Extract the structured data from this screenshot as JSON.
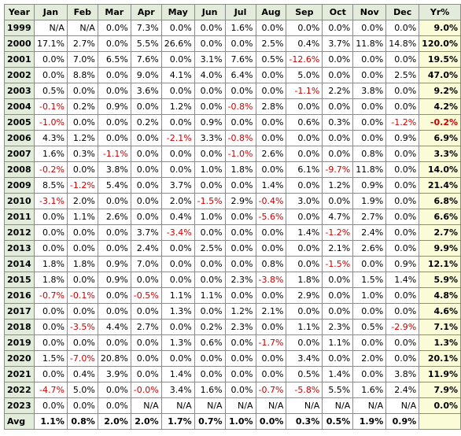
{
  "headers": [
    "Year",
    "Jan",
    "Feb",
    "Mar",
    "Apr",
    "May",
    "Jun",
    "Jul",
    "Aug",
    "Sep",
    "Oct",
    "Nov",
    "Dec",
    "Yr%"
  ],
  "rows": [
    {
      "year": "1999",
      "m": [
        "N/A",
        "N/A",
        "0.0%",
        "7.3%",
        "0.0%",
        "0.0%",
        "1.6%",
        "0.0%",
        "0.0%",
        "0.0%",
        "0.0%",
        "0.0%"
      ],
      "yr": "9.0%"
    },
    {
      "year": "2000",
      "m": [
        "17.1%",
        "2.7%",
        "0.0%",
        "5.5%",
        "26.6%",
        "0.0%",
        "0.0%",
        "2.5%",
        "0.4%",
        "3.7%",
        "11.8%",
        "14.8%"
      ],
      "yr": "120.0%"
    },
    {
      "year": "2001",
      "m": [
        "0.0%",
        "7.0%",
        "6.5%",
        "7.6%",
        "0.0%",
        "3.1%",
        "7.6%",
        "0.5%",
        "-12.6%",
        "0.0%",
        "0.0%",
        "0.0%"
      ],
      "yr": "19.5%"
    },
    {
      "year": "2002",
      "m": [
        "0.0%",
        "8.8%",
        "0.0%",
        "9.0%",
        "4.1%",
        "4.0%",
        "6.4%",
        "0.0%",
        "5.0%",
        "0.0%",
        "0.0%",
        "2.5%"
      ],
      "yr": "47.0%"
    },
    {
      "year": "2003",
      "m": [
        "0.5%",
        "0.0%",
        "0.0%",
        "3.6%",
        "0.0%",
        "0.0%",
        "0.0%",
        "0.0%",
        "-1.1%",
        "2.2%",
        "3.8%",
        "0.0%"
      ],
      "yr": "9.2%"
    },
    {
      "year": "2004",
      "m": [
        "-0.1%",
        "0.2%",
        "0.9%",
        "0.0%",
        "1.2%",
        "0.0%",
        "-0.8%",
        "2.8%",
        "0.0%",
        "0.0%",
        "0.0%",
        "0.0%"
      ],
      "yr": "4.2%"
    },
    {
      "year": "2005",
      "m": [
        "-1.0%",
        "0.0%",
        "0.0%",
        "0.2%",
        "0.0%",
        "0.9%",
        "0.0%",
        "0.0%",
        "0.6%",
        "0.3%",
        "0.0%",
        "-1.2%"
      ],
      "yr": "-0.2%"
    },
    {
      "year": "2006",
      "m": [
        "4.3%",
        "1.2%",
        "0.0%",
        "0.0%",
        "-2.1%",
        "3.3%",
        "-0.8%",
        "0.0%",
        "0.0%",
        "0.0%",
        "0.0%",
        "0.9%"
      ],
      "yr": "6.9%"
    },
    {
      "year": "2007",
      "m": [
        "1.6%",
        "0.3%",
        "-1.1%",
        "0.0%",
        "0.0%",
        "0.0%",
        "-1.0%",
        "2.6%",
        "0.0%",
        "0.0%",
        "0.8%",
        "0.0%"
      ],
      "yr": "3.3%"
    },
    {
      "year": "2008",
      "m": [
        "-0.2%",
        "0.0%",
        "3.8%",
        "0.0%",
        "0.0%",
        "1.0%",
        "1.8%",
        "0.0%",
        "6.1%",
        "-9.7%",
        "11.8%",
        "0.0%"
      ],
      "yr": "14.0%"
    },
    {
      "year": "2009",
      "m": [
        "8.5%",
        "-1.2%",
        "5.4%",
        "0.0%",
        "3.7%",
        "0.0%",
        "0.0%",
        "1.4%",
        "0.0%",
        "1.2%",
        "0.9%",
        "0.0%"
      ],
      "yr": "21.4%"
    },
    {
      "year": "2010",
      "m": [
        "-3.1%",
        "2.0%",
        "0.0%",
        "0.0%",
        "2.0%",
        "-1.5%",
        "2.9%",
        "-0.4%",
        "3.0%",
        "0.0%",
        "1.9%",
        "0.0%"
      ],
      "yr": "6.8%"
    },
    {
      "year": "2011",
      "m": [
        "0.0%",
        "1.1%",
        "2.6%",
        "0.0%",
        "0.4%",
        "1.0%",
        "0.0%",
        "-5.6%",
        "0.0%",
        "4.7%",
        "2.7%",
        "0.0%"
      ],
      "yr": "6.6%"
    },
    {
      "year": "2012",
      "m": [
        "0.0%",
        "0.0%",
        "0.0%",
        "3.7%",
        "-3.4%",
        "0.0%",
        "0.0%",
        "0.0%",
        "1.4%",
        "-1.2%",
        "2.4%",
        "0.0%"
      ],
      "yr": "2.7%"
    },
    {
      "year": "2013",
      "m": [
        "0.0%",
        "0.0%",
        "0.0%",
        "2.4%",
        "0.0%",
        "2.5%",
        "0.0%",
        "0.0%",
        "0.0%",
        "2.1%",
        "2.6%",
        "0.0%"
      ],
      "yr": "9.9%"
    },
    {
      "year": "2014",
      "m": [
        "1.8%",
        "1.8%",
        "0.9%",
        "7.0%",
        "0.0%",
        "0.0%",
        "0.0%",
        "0.8%",
        "0.0%",
        "-1.5%",
        "0.0%",
        "0.9%"
      ],
      "yr": "12.1%"
    },
    {
      "year": "2015",
      "m": [
        "1.8%",
        "0.0%",
        "0.9%",
        "0.0%",
        "0.0%",
        "0.0%",
        "2.3%",
        "-3.8%",
        "1.8%",
        "0.0%",
        "1.5%",
        "1.4%"
      ],
      "yr": "5.9%"
    },
    {
      "year": "2016",
      "m": [
        "-0.7%",
        "-0.1%",
        "0.0%",
        "-0.5%",
        "1.1%",
        "1.1%",
        "0.0%",
        "0.0%",
        "2.9%",
        "0.0%",
        "1.0%",
        "0.0%"
      ],
      "yr": "4.8%"
    },
    {
      "year": "2017",
      "m": [
        "0.0%",
        "0.0%",
        "0.0%",
        "0.0%",
        "1.3%",
        "0.0%",
        "1.2%",
        "2.1%",
        "0.0%",
        "0.0%",
        "0.0%",
        "0.0%"
      ],
      "yr": "4.6%"
    },
    {
      "year": "2018",
      "m": [
        "0.0%",
        "-3.5%",
        "4.4%",
        "2.7%",
        "0.0%",
        "0.2%",
        "2.3%",
        "0.0%",
        "1.1%",
        "2.3%",
        "0.5%",
        "-2.9%"
      ],
      "yr": "7.1%"
    },
    {
      "year": "2019",
      "m": [
        "0.0%",
        "0.0%",
        "0.0%",
        "0.0%",
        "1.3%",
        "0.6%",
        "0.0%",
        "-1.7%",
        "0.0%",
        "1.1%",
        "0.0%",
        "0.0%"
      ],
      "yr": "1.3%"
    },
    {
      "year": "2020",
      "m": [
        "1.5%",
        "-7.0%",
        "20.8%",
        "0.0%",
        "0.0%",
        "0.0%",
        "0.0%",
        "0.0%",
        "3.4%",
        "0.0%",
        "2.0%",
        "0.0%"
      ],
      "yr": "20.1%"
    },
    {
      "year": "2021",
      "m": [
        "0.0%",
        "0.4%",
        "3.9%",
        "0.0%",
        "1.4%",
        "0.0%",
        "0.0%",
        "0.0%",
        "0.5%",
        "1.4%",
        "0.0%",
        "3.8%"
      ],
      "yr": "11.9%"
    },
    {
      "year": "2022",
      "m": [
        "-4.7%",
        "5.0%",
        "0.0%",
        "-0.0%",
        "3.4%",
        "1.6%",
        "0.0%",
        "-0.7%",
        "-5.8%",
        "5.5%",
        "1.6%",
        "2.4%"
      ],
      "yr": "7.9%"
    },
    {
      "year": "2023",
      "m": [
        "0.0%",
        "0.0%",
        "0.0%",
        "N/A",
        "N/A",
        "N/A",
        "N/A",
        "N/A",
        "N/A",
        "N/A",
        "N/A",
        "N/A"
      ],
      "yr": "0.0%"
    }
  ],
  "avg": {
    "label": "Avg",
    "m": [
      "1.1%",
      "0.8%",
      "2.0%",
      "2.0%",
      "1.7%",
      "0.7%",
      "1.0%",
      "0.0%",
      "0.3%",
      "0.5%",
      "1.9%",
      "0.9%"
    ],
    "yr": ""
  },
  "colors": {
    "header_bg": "#e3ecda",
    "yr_bg": "#fafcd8",
    "negative": "#cc0000",
    "border": "#8c8c8c"
  }
}
